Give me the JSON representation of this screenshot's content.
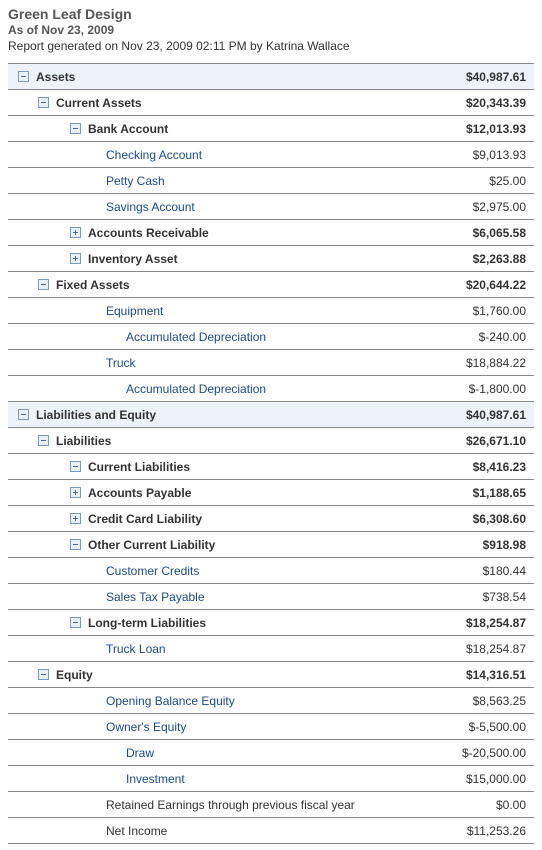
{
  "header": {
    "company": "Green Leaf Design",
    "asof": "As of Nov 23, 2009",
    "generated": "Report generated on Nov 23, 2009 02:11 PM by Katrina Wallace"
  },
  "colors": {
    "link": "#1a4b8c",
    "shaded_bg": "#eef2fa",
    "border": "#888888",
    "header_text": "#555555"
  },
  "rows": [
    {
      "label": "Assets",
      "amount": "$40,987.61",
      "indent": 0,
      "icon": "minus",
      "bold": true,
      "link": false,
      "shaded": true
    },
    {
      "label": "Current Assets",
      "amount": "$20,343.39",
      "indent": 1,
      "icon": "minus",
      "bold": true,
      "link": false,
      "shaded": false
    },
    {
      "label": "Bank Account",
      "amount": "$12,013.93",
      "indent": 2,
      "icon": "minus",
      "bold": true,
      "link": false,
      "shaded": false
    },
    {
      "label": "Checking Account",
      "amount": "$9,013.93",
      "indent": 3,
      "icon": "none",
      "bold": false,
      "link": true,
      "shaded": false
    },
    {
      "label": "Petty Cash",
      "amount": "$25.00",
      "indent": 3,
      "icon": "none",
      "bold": false,
      "link": true,
      "shaded": false
    },
    {
      "label": "Savings Account",
      "amount": "$2,975.00",
      "indent": 3,
      "icon": "none",
      "bold": false,
      "link": true,
      "shaded": false
    },
    {
      "label": "Accounts Receivable",
      "amount": "$6,065.58",
      "indent": 2,
      "icon": "plus",
      "bold": true,
      "link": false,
      "shaded": false
    },
    {
      "label": "Inventory Asset",
      "amount": "$2,263.88",
      "indent": 2,
      "icon": "plus",
      "bold": true,
      "link": false,
      "shaded": false
    },
    {
      "label": "Fixed Assets",
      "amount": "$20,644.22",
      "indent": 1,
      "icon": "minus",
      "bold": true,
      "link": false,
      "shaded": false
    },
    {
      "label": "Equipment",
      "amount": "$1,760.00",
      "indent": 3,
      "icon": "none",
      "bold": false,
      "link": true,
      "shaded": false
    },
    {
      "label": "Accumulated Depreciation",
      "amount": "$-240.00",
      "indent": 4,
      "icon": "none",
      "bold": false,
      "link": true,
      "shaded": false
    },
    {
      "label": "Truck",
      "amount": "$18,884.22",
      "indent": 3,
      "icon": "none",
      "bold": false,
      "link": true,
      "shaded": false
    },
    {
      "label": "Accumulated Depreciation",
      "amount": "$-1,800.00",
      "indent": 4,
      "icon": "none",
      "bold": false,
      "link": true,
      "shaded": false
    },
    {
      "label": "Liabilities and Equity",
      "amount": "$40,987.61",
      "indent": 0,
      "icon": "minus",
      "bold": true,
      "link": false,
      "shaded": true
    },
    {
      "label": "Liabilities",
      "amount": "$26,671.10",
      "indent": 1,
      "icon": "minus",
      "bold": true,
      "link": false,
      "shaded": false
    },
    {
      "label": "Current Liabilities",
      "amount": "$8,416.23",
      "indent": 2,
      "icon": "minus",
      "bold": true,
      "link": false,
      "shaded": false
    },
    {
      "label": "Accounts Payable",
      "amount": "$1,188.65",
      "indent": 2,
      "icon": "plus",
      "bold": true,
      "link": false,
      "shaded": false
    },
    {
      "label": "Credit Card Liability",
      "amount": "$6,308.60",
      "indent": 2,
      "icon": "plus",
      "bold": true,
      "link": false,
      "shaded": false
    },
    {
      "label": "Other Current Liability",
      "amount": "$918.98",
      "indent": 2,
      "icon": "minus",
      "bold": true,
      "link": false,
      "shaded": false
    },
    {
      "label": "Customer Credits",
      "amount": "$180.44",
      "indent": 3,
      "icon": "none",
      "bold": false,
      "link": true,
      "shaded": false
    },
    {
      "label": "Sales Tax Payable",
      "amount": "$738.54",
      "indent": 3,
      "icon": "none",
      "bold": false,
      "link": true,
      "shaded": false
    },
    {
      "label": "Long-term Liabilities",
      "amount": "$18,254.87",
      "indent": 2,
      "icon": "minus",
      "bold": true,
      "link": false,
      "shaded": false
    },
    {
      "label": "Truck Loan",
      "amount": "$18,254.87",
      "indent": 3,
      "icon": "none",
      "bold": false,
      "link": true,
      "shaded": false
    },
    {
      "label": "Equity",
      "amount": "$14,316.51",
      "indent": 1,
      "icon": "minus",
      "bold": true,
      "link": false,
      "shaded": false
    },
    {
      "label": "Opening Balance Equity",
      "amount": "$8,563.25",
      "indent": 3,
      "icon": "none",
      "bold": false,
      "link": true,
      "shaded": false
    },
    {
      "label": "Owner's Equity",
      "amount": "$-5,500.00",
      "indent": 3,
      "icon": "none",
      "bold": false,
      "link": true,
      "shaded": false
    },
    {
      "label": "Draw",
      "amount": "$-20,500.00",
      "indent": 4,
      "icon": "none",
      "bold": false,
      "link": true,
      "shaded": false
    },
    {
      "label": "Investment",
      "amount": "$15,000.00",
      "indent": 4,
      "icon": "none",
      "bold": false,
      "link": true,
      "shaded": false
    },
    {
      "label": "Retained Earnings through previous fiscal year",
      "amount": "$0.00",
      "indent": 3,
      "icon": "none",
      "bold": false,
      "link": false,
      "shaded": false
    },
    {
      "label": "Net Income",
      "amount": "$11,253.26",
      "indent": 3,
      "icon": "none",
      "bold": false,
      "link": false,
      "shaded": false
    }
  ]
}
